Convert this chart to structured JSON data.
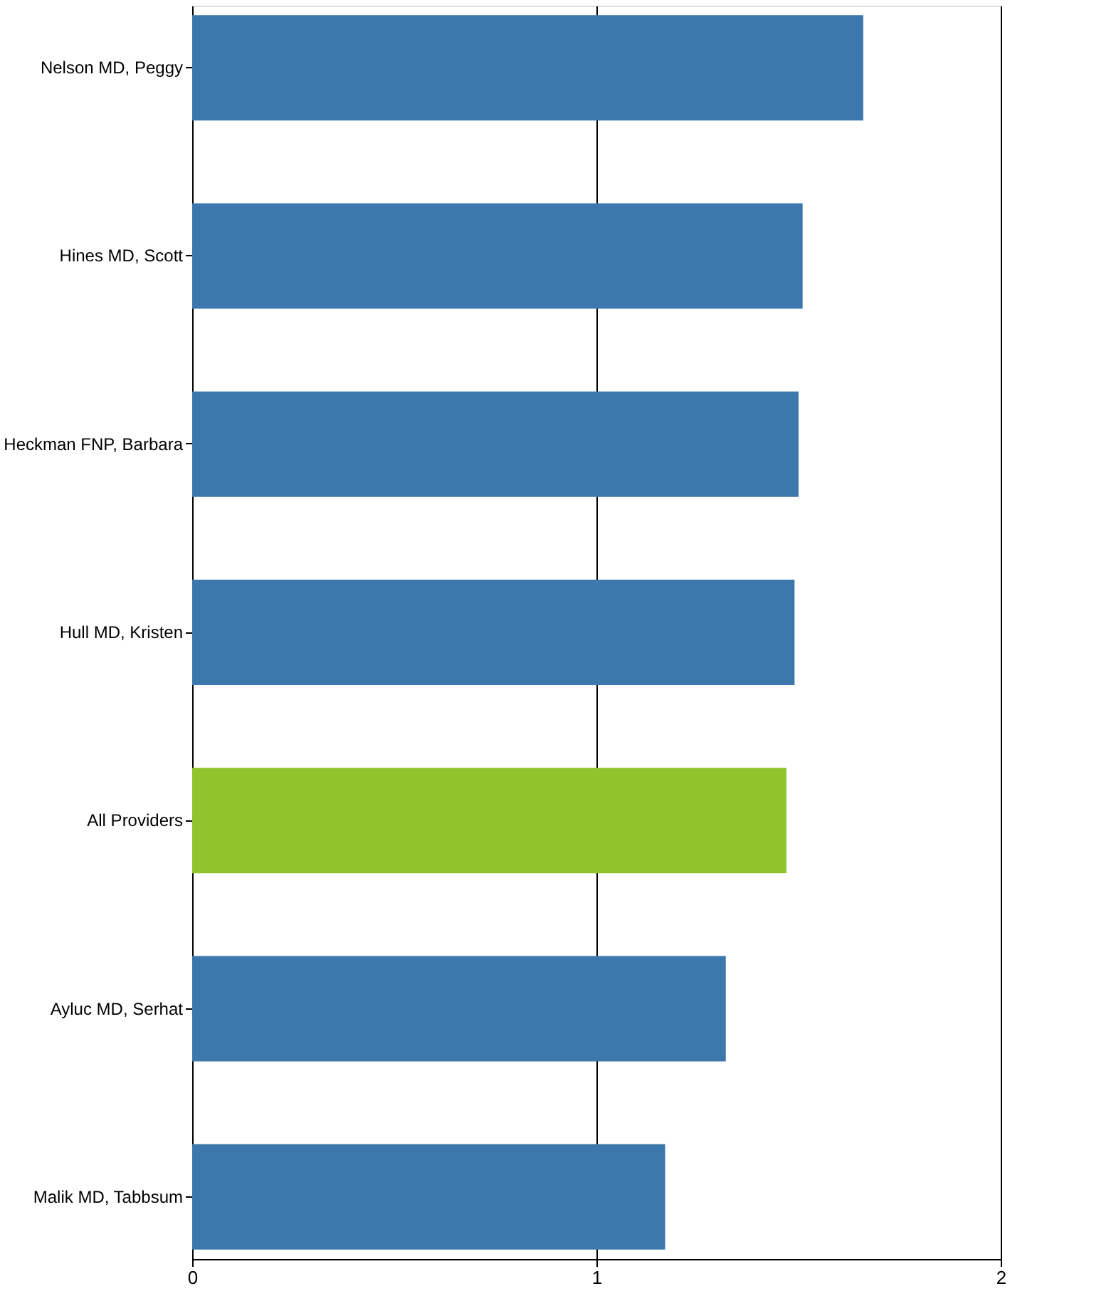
{
  "chart_data": {
    "type": "bar",
    "orientation": "horizontal",
    "categories": [
      "Nelson MD, Peggy",
      "Hines MD, Scott",
      "Heckman FNP, Barbara",
      "Hull MD, Kristen",
      "All Providers",
      "Ayluc MD, Serhat",
      "Malik MD, Tabbsum"
    ],
    "values": [
      1.66,
      1.51,
      1.5,
      1.49,
      1.47,
      1.32,
      1.17
    ],
    "colors": [
      "#3d78ad",
      "#3d78ad",
      "#3d78ad",
      "#3d78ad",
      "#8fc42c",
      "#3d78ad",
      "#3d78ad"
    ],
    "xlim": [
      0,
      2
    ],
    "xticks": [
      0,
      1,
      2
    ],
    "grid": "x"
  }
}
